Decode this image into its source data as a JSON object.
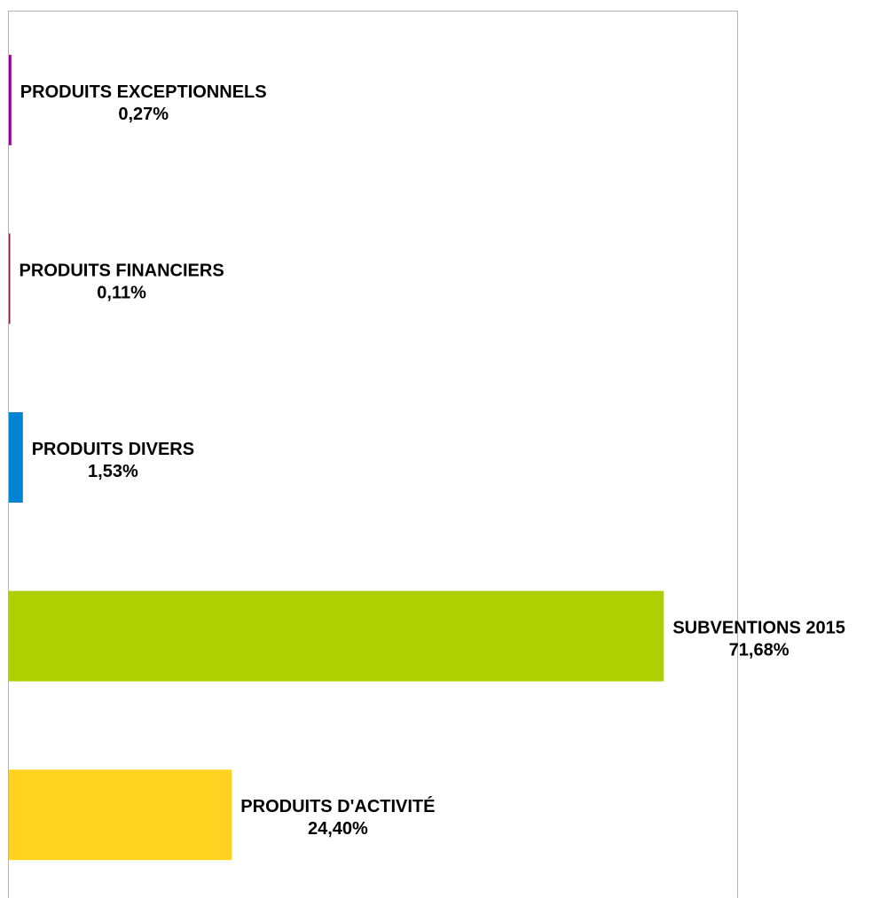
{
  "chart_data": {
    "type": "bar",
    "orientation": "horizontal",
    "categories": [
      "PRODUITS EXCEPTIONNELS",
      "PRODUITS FINANCIERS",
      "PRODUITS DIVERS",
      "SUBVENTIONS 2015",
      "PRODUITS D'ACTIVITÉ"
    ],
    "values": [
      0.27,
      0.11,
      1.53,
      71.68,
      24.4
    ],
    "value_labels": [
      "0,27%",
      "0,11%",
      "1,53%",
      "71,68%",
      "24,40%"
    ],
    "colors": [
      "#990099",
      "#8b1a3a",
      "#0084d1",
      "#aecf00",
      "#ffd320"
    ],
    "xlim": [
      0,
      80
    ],
    "value_unit": "%",
    "title": "",
    "xlabel": "",
    "ylabel": "",
    "grid": false,
    "legend": "none"
  }
}
